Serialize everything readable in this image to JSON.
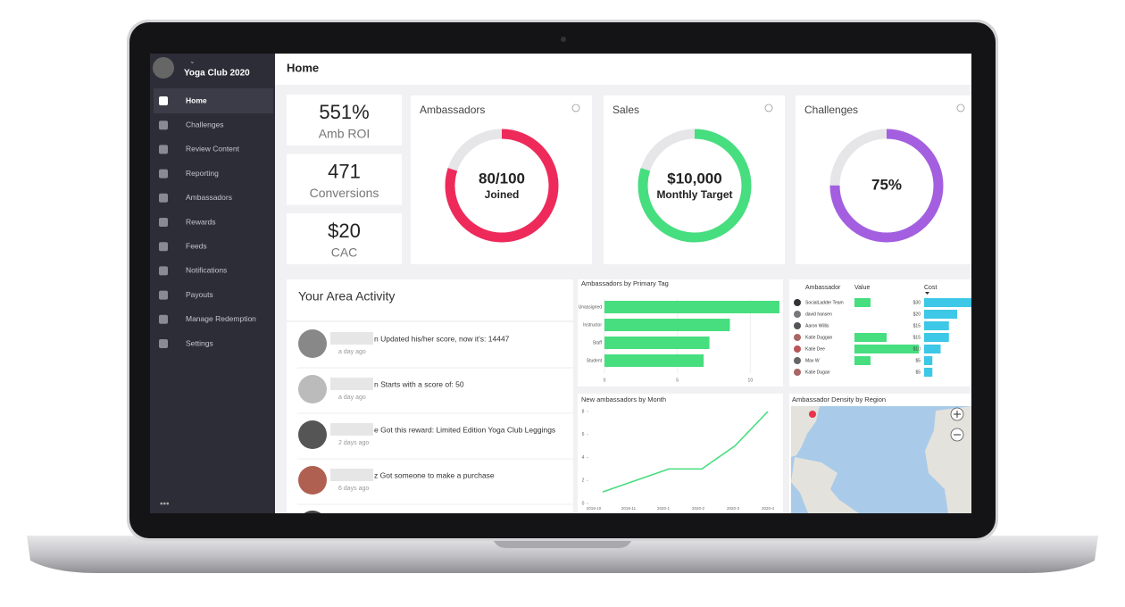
{
  "sidebar": {
    "brand": "Yoga Club 2020",
    "menu": [
      "Home",
      "Challenges",
      "Review Content",
      "Reporting",
      "Ambassadors",
      "Rewards",
      "Feeds",
      "Notifications",
      "Payouts",
      "Manage Redemption",
      "Settings"
    ]
  },
  "header": {
    "title": "Home"
  },
  "kpis": [
    {
      "value": "551%",
      "label": "Amb ROI"
    },
    {
      "value": "471",
      "label": "Conversions"
    },
    {
      "value": "$20",
      "label": "CAC"
    }
  ],
  "gauges": [
    {
      "title": "Ambassadors",
      "main": "80/100",
      "sub": "Joined",
      "percent": 80,
      "color": "#ee2a5b"
    },
    {
      "title": "Sales",
      "main": "$10,000",
      "sub": "Monthly Target",
      "percent": 80,
      "color": "#46de7f"
    },
    {
      "title": "Challenges",
      "main": "75%",
      "percent": 75,
      "color": "#a35fe0"
    }
  ],
  "activity": {
    "title": "Your Area Activity",
    "items": [
      {
        "text": "n Updated his/her score, now it's: 14447",
        "time": "a day ago"
      },
      {
        "text": "n Starts with a score of: 50",
        "time": "a day ago"
      },
      {
        "text": "e Got this reward: Limited Edition Yoga Club Leggings",
        "time": "2 days ago"
      },
      {
        "text": "z Got someone to make a purchase",
        "time": "6 days ago"
      }
    ]
  },
  "chart_data": [
    {
      "type": "hbar",
      "title": "Ambassadors by Primary Tag",
      "categories": [
        "Unassigned",
        "Instructor",
        "Staff",
        "Student"
      ],
      "values": [
        12,
        8.6,
        7.2,
        6.8
      ],
      "color": "#46de7f",
      "xlim": [
        0,
        12
      ],
      "xticks": [
        0,
        5,
        10
      ],
      "grid": true
    },
    {
      "type": "line",
      "title": "New ambassadors by Month",
      "categories": [
        "2019-10",
        "2019-11",
        "2020-1",
        "2020-2",
        "2020-3",
        "2020-4"
      ],
      "values": [
        1,
        2,
        3,
        3,
        5,
        8
      ],
      "color": "#46de7f",
      "ylim": [
        0,
        8
      ],
      "yticks": [
        0,
        2,
        4,
        6,
        8
      ]
    }
  ],
  "ambassador_table": {
    "columns": [
      "Ambassador",
      "Value",
      "Cost"
    ],
    "value_color": "#46de7f",
    "cost_color": "#3cc8e6",
    "rows": [
      {
        "name": "SocialLadder Team",
        "value": 2,
        "cost": 30,
        "cost_label": "$30"
      },
      {
        "name": "david hansen",
        "value": 0,
        "cost": 20,
        "cost_label": "$20"
      },
      {
        "name": "Aaron Willis",
        "value": 0,
        "cost": 15,
        "cost_label": "$15"
      },
      {
        "name": "Katie Duggan",
        "value": 4,
        "cost": 15,
        "cost_label": "$15"
      },
      {
        "name": "Katie Dee",
        "value": 8,
        "cost": 10,
        "cost_label": "$10"
      },
      {
        "name": "Max W",
        "value": 2,
        "cost": 5,
        "cost_label": "$5"
      },
      {
        "name": "Katie Dugan",
        "value": 0,
        "cost": 5,
        "cost_label": "$5"
      }
    ]
  },
  "map": {
    "title": "Ambassador Density by Region"
  }
}
